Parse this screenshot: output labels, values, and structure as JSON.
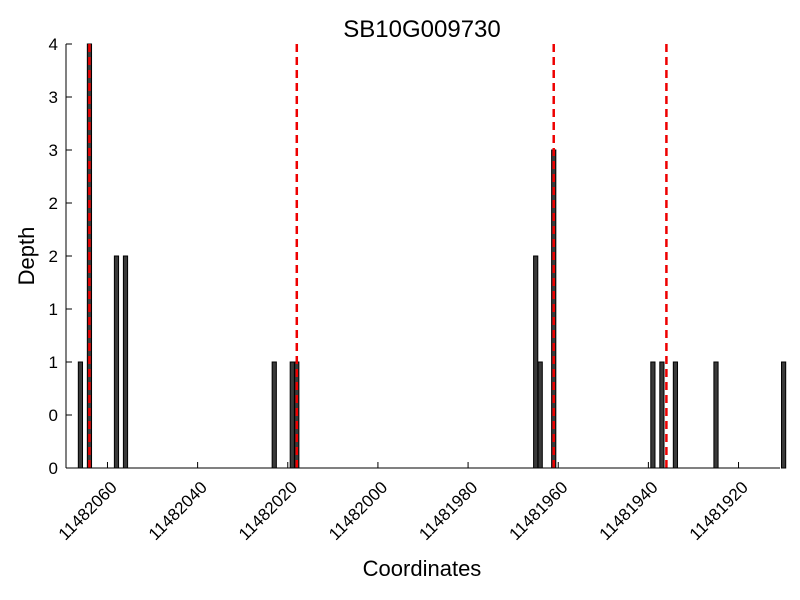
{
  "chart_data": {
    "type": "bar",
    "title": "SB10G009730",
    "xlabel": "Coordinates",
    "ylabel": "Depth",
    "x_reversed": true,
    "xlim": [
      11482069.2,
      11481910.8
    ],
    "ylim": [
      0,
      4
    ],
    "y_tick_values": [
      0,
      0.5,
      1,
      1.5,
      2,
      2.5,
      3,
      3.5,
      4
    ],
    "y_tick_labels": [
      "0",
      "0",
      "1",
      "1",
      "2",
      "2",
      "3",
      "3",
      "4"
    ],
    "x_tick_values": [
      11482060,
      11482040,
      11482020,
      11482000,
      11481980,
      11481960,
      11481940,
      11481920
    ],
    "x_tick_labels": [
      "11482060",
      "11482040",
      "11482020",
      "11482000",
      "11481980",
      "11481960",
      "11481940",
      "11481920"
    ],
    "bars": {
      "x": [
        11482066,
        11482064,
        11482058,
        11482056,
        11482023,
        11482019,
        11482018,
        11481965,
        11481964,
        11481961,
        11481939,
        11481937,
        11481934,
        11481925,
        11481910
      ],
      "values": [
        1,
        4,
        2,
        2,
        1,
        1,
        1,
        2,
        1,
        3,
        1,
        1,
        1,
        1,
        1
      ]
    },
    "vlines": [
      11482064,
      11482018,
      11481961,
      11481936
    ],
    "colors": {
      "bar_fill": "#3a3a3a",
      "bar_edge": "#000000",
      "vline": "#ee0000"
    },
    "grid": false,
    "legend": false
  }
}
